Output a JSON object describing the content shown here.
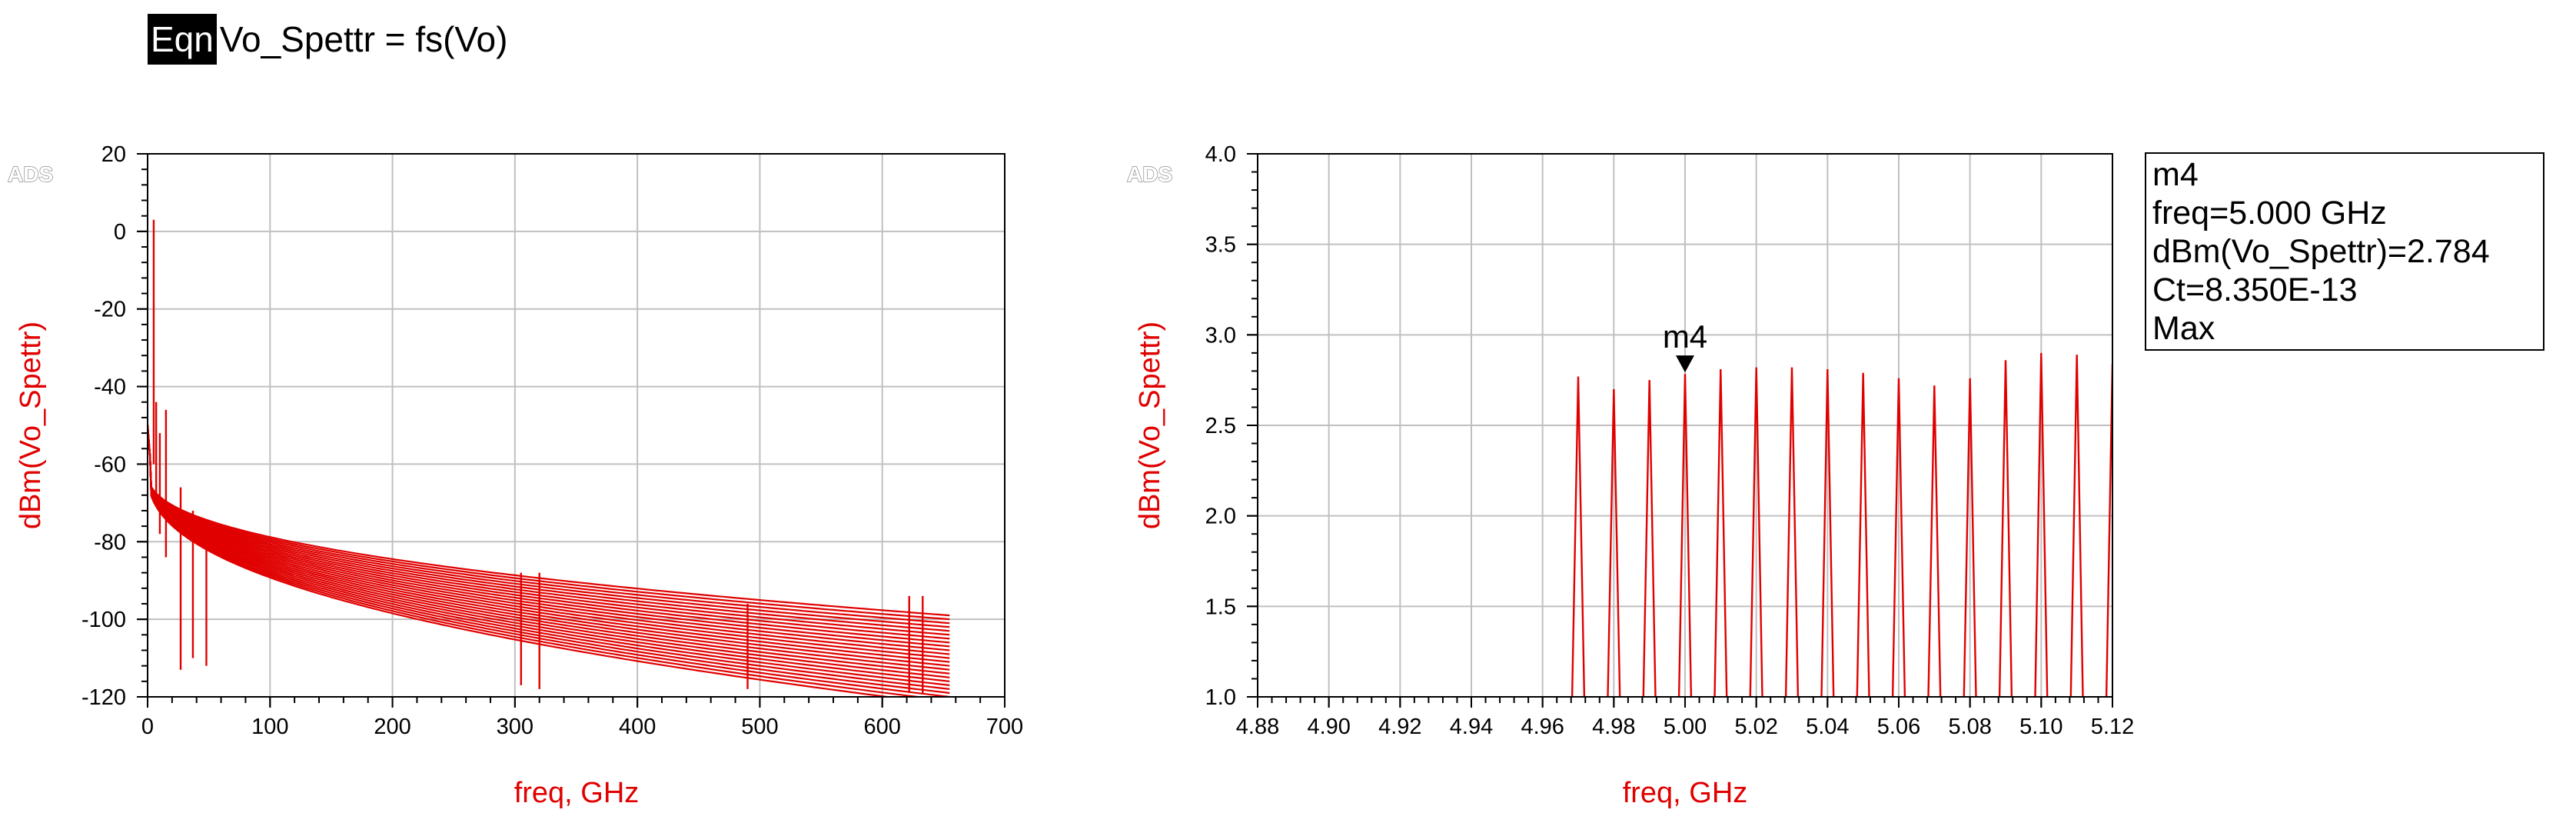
{
  "equation": {
    "tag": "Eqn",
    "text": "Vo_Spettr = fs(Vo)"
  },
  "watermark": "ADS",
  "colors": {
    "trace": "#e00000",
    "grid": "#c0c0c0",
    "axis_label": "#e00000"
  },
  "chart_data": [
    {
      "type": "line",
      "xlabel": "freq, GHz",
      "ylabel": "dBm(Vo_Spettr)",
      "xlim": [
        0,
        700
      ],
      "ylim": [
        -120,
        20
      ],
      "x_ticks": [
        "0",
        "100",
        "200",
        "300",
        "400",
        "500",
        "600",
        "700"
      ],
      "y_ticks": [
        "-120",
        "-100",
        "-80",
        "-60",
        "-40",
        "-20",
        "0",
        "20"
      ],
      "grid": true,
      "family": {
        "count": 24,
        "x_range": [
          0,
          655
        ],
        "end_levels_dBm": [
          -99,
          -100,
          -101,
          -102,
          -103,
          -104,
          -105,
          -106,
          -107,
          -108,
          -109,
          -110,
          -111,
          -112,
          -113,
          -114,
          -115,
          -116,
          -117,
          -118,
          -119,
          -120,
          -121,
          -122
        ],
        "start_level_dBm": -62
      },
      "spikes": [
        {
          "x": 5,
          "y_top": 3,
          "y_base": -60
        },
        {
          "x": 7,
          "y_top": -44,
          "y_base": -70
        },
        {
          "x": 10,
          "y_top": -52,
          "y_base": -78
        },
        {
          "x": 15,
          "y_top": -46,
          "y_base": -84
        },
        {
          "x": 27,
          "y_top": -66,
          "y_base": -113
        },
        {
          "x": 37,
          "y_top": -72,
          "y_base": -110
        },
        {
          "x": 48,
          "y_top": -78,
          "y_base": -112
        },
        {
          "x": 305,
          "y_top": -88,
          "y_base": -117
        },
        {
          "x": 320,
          "y_top": -88,
          "y_base": -118
        },
        {
          "x": 490,
          "y_top": -96,
          "y_base": -118
        },
        {
          "x": 622,
          "y_top": -94,
          "y_base": -119
        },
        {
          "x": 633,
          "y_top": -94,
          "y_base": -119
        }
      ]
    },
    {
      "type": "line",
      "xlabel": "freq, GHz",
      "ylabel": "dBm(Vo_Spettr)",
      "xlim": [
        4.88,
        5.12
      ],
      "ylim": [
        1.0,
        4.0
      ],
      "x_ticks": [
        "4.88",
        "4.90",
        "4.92",
        "4.94",
        "4.96",
        "4.98",
        "5.00",
        "5.02",
        "5.04",
        "5.06",
        "5.08",
        "5.10",
        "5.12"
      ],
      "y_ticks": [
        "1.0",
        "1.5",
        "2.0",
        "2.5",
        "3.0",
        "3.5",
        "4.0"
      ],
      "grid": true,
      "peak_halfwidth_GHz": 0.0017,
      "peaks": [
        {
          "x": 4.97,
          "y": 2.77
        },
        {
          "x": 4.98,
          "y": 2.7
        },
        {
          "x": 4.99,
          "y": 2.75
        },
        {
          "x": 5.0,
          "y": 2.784
        },
        {
          "x": 5.01,
          "y": 2.81
        },
        {
          "x": 5.02,
          "y": 2.82
        },
        {
          "x": 5.03,
          "y": 2.82
        },
        {
          "x": 5.04,
          "y": 2.81
        },
        {
          "x": 5.05,
          "y": 2.79
        },
        {
          "x": 5.06,
          "y": 2.76
        },
        {
          "x": 5.07,
          "y": 2.72
        },
        {
          "x": 5.08,
          "y": 2.76
        },
        {
          "x": 5.09,
          "y": 2.86
        },
        {
          "x": 5.1,
          "y": 2.9
        },
        {
          "x": 5.11,
          "y": 2.89
        },
        {
          "x": 5.12,
          "y": 2.84
        }
      ],
      "marker": {
        "name": "m4",
        "x": 5.0,
        "y": 2.784,
        "readout": [
          "m4",
          "freq=5.000 GHz",
          "dBm(Vo_Spettr)=2.784",
          "Ct=8.350E-13",
          "Max"
        ]
      }
    }
  ]
}
